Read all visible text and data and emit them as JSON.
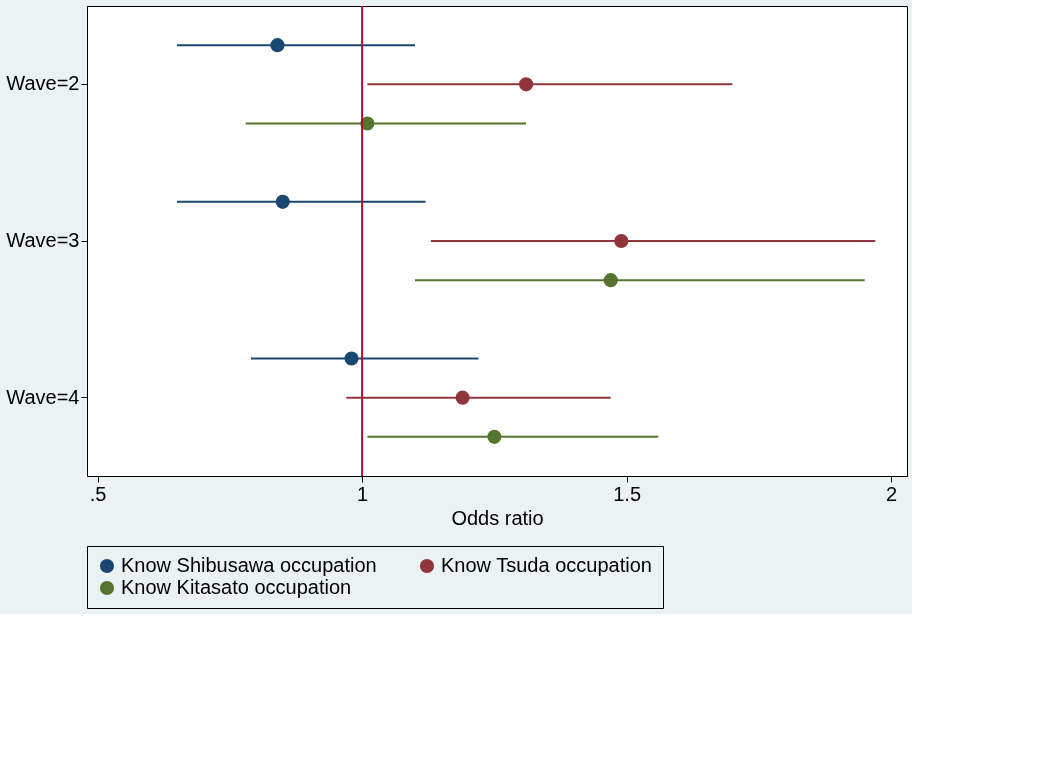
{
  "chart_data": {
    "type": "scatter",
    "orientation": "horizontal",
    "xlabel": "Odds ratio",
    "categories": [
      "Wave=2",
      "Wave=3",
      "Wave=4"
    ],
    "series": [
      {
        "name": "Know Shibusawa occupation",
        "color": "#1a476f",
        "values": [
          0.84,
          0.85,
          0.98
        ],
        "errors": [
          [
            0.65,
            1.1
          ],
          [
            0.65,
            1.12
          ],
          [
            0.79,
            1.22
          ]
        ]
      },
      {
        "name": "Know Tsuda occupation",
        "color": "#90353b",
        "values": [
          1.31,
          1.49,
          1.19
        ],
        "errors": [
          [
            1.01,
            1.7
          ],
          [
            1.13,
            1.97
          ],
          [
            0.97,
            1.47
          ]
        ]
      },
      {
        "name": "Know Kitasato occupation",
        "color": "#55752f",
        "values": [
          1.01,
          1.47,
          1.25
        ],
        "errors": [
          [
            0.78,
            1.31
          ],
          [
            1.1,
            1.95
          ],
          [
            1.01,
            1.56
          ]
        ]
      }
    ],
    "xlim": [
      0.48,
      2.03
    ],
    "xticks": [
      {
        "value": 0.5,
        "label": ".5"
      },
      1,
      1.5,
      2
    ],
    "ref_lines": [
      {
        "axis": "x",
        "value": 1,
        "color": "#c10534"
      }
    ],
    "marker": "circle",
    "grid": false,
    "legend": "bottom"
  }
}
